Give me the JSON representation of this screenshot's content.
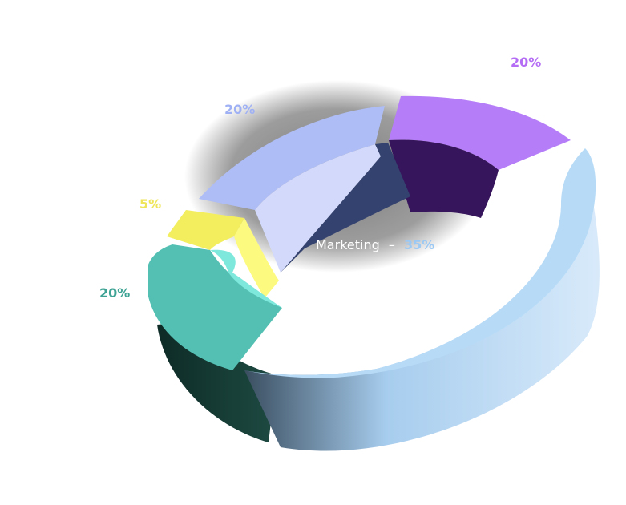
{
  "chart_data": {
    "type": "pie",
    "style": "3d-donut",
    "categories": [
      "Marketing",
      "",
      "",
      "",
      ""
    ],
    "values": [
      35,
      20,
      20,
      20,
      5
    ],
    "value_labels": [
      "35%",
      "20%",
      "20%",
      "20%",
      "5%"
    ],
    "center_label": {
      "name": "Marketing",
      "separator": "–",
      "value": "35%"
    },
    "colors": [
      "#b7dbf7",
      "#b57df8",
      "#aebdf6",
      "#f2ee5e",
      "#53c0b3"
    ],
    "label_colors": [
      "#8fb8e8",
      "#b46df4",
      "#9fb1f4",
      "#eee55a",
      "#3ea394"
    ]
  }
}
